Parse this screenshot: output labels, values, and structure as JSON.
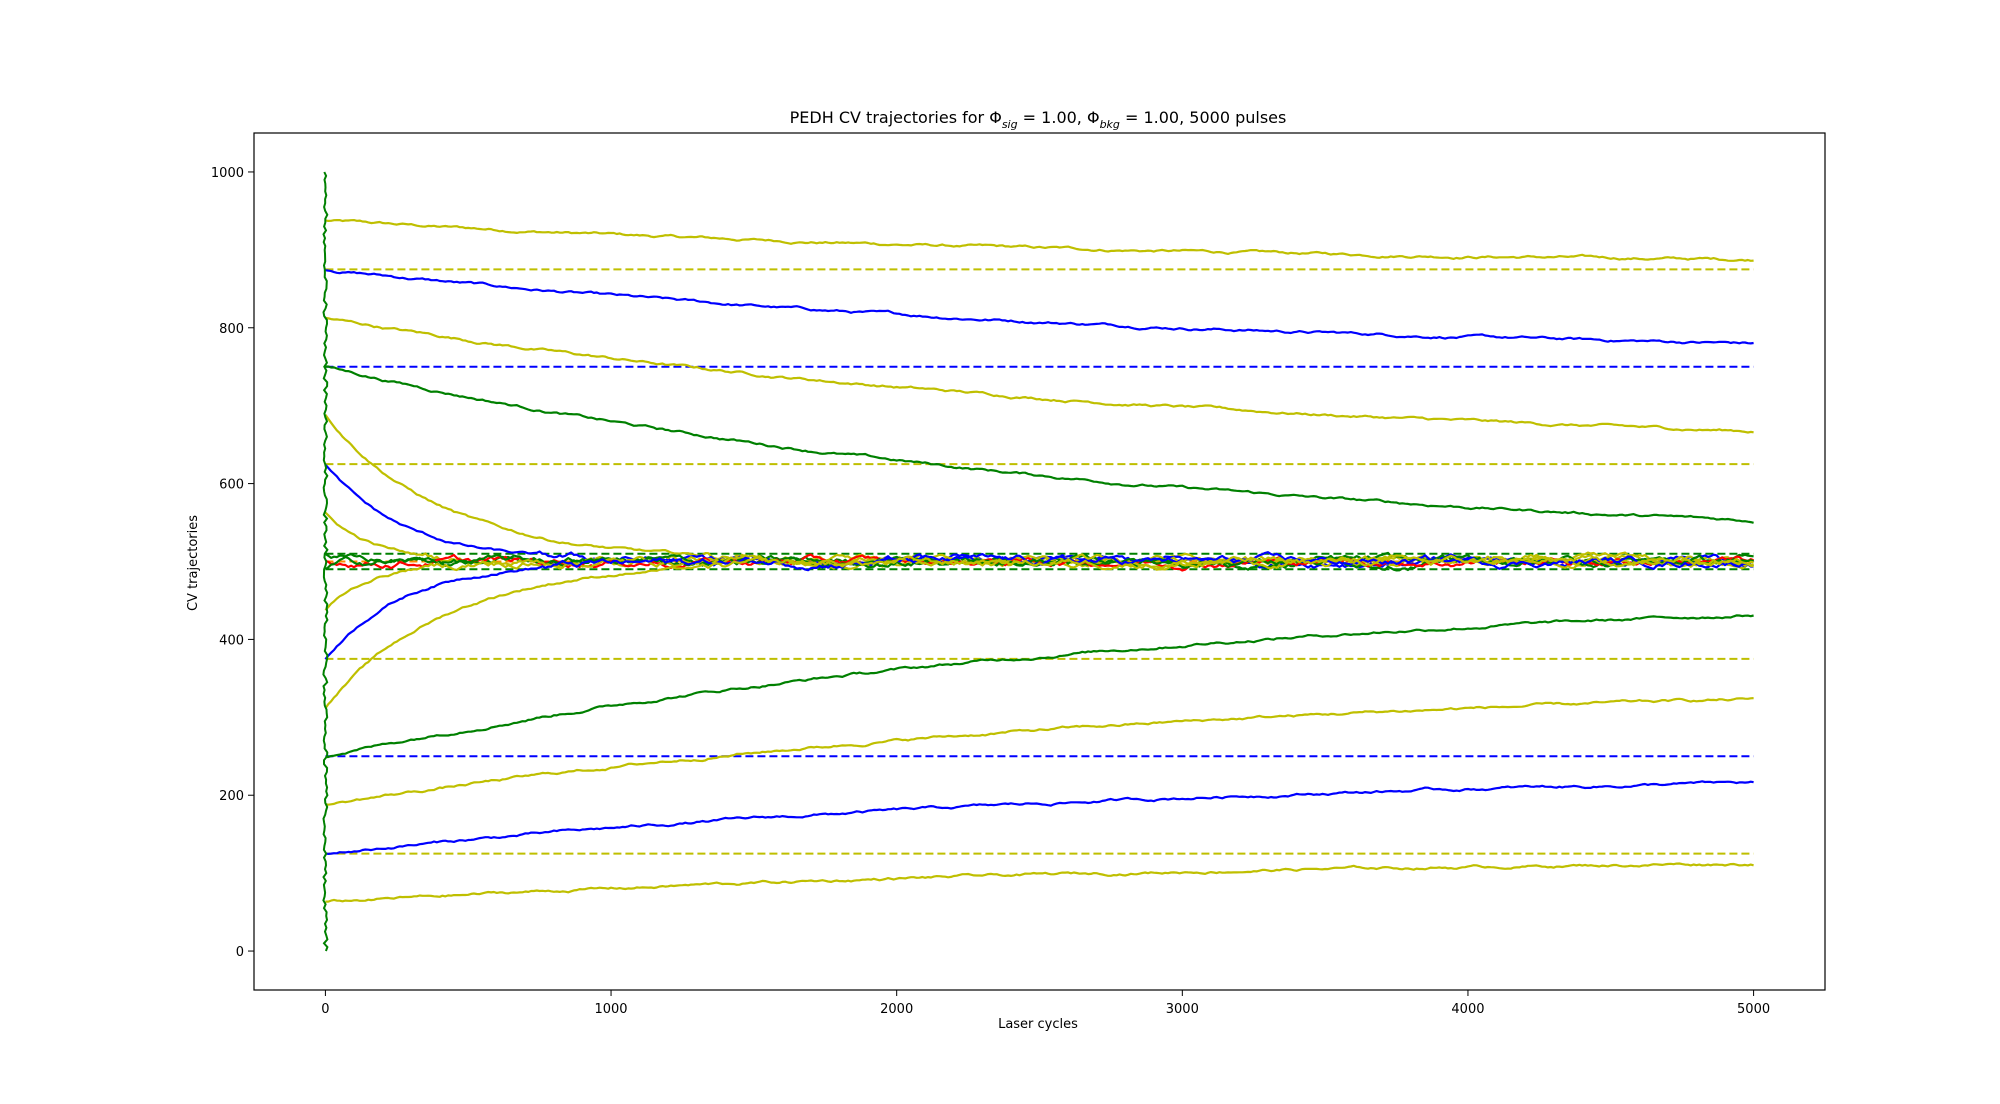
{
  "chart_data": {
    "type": "line",
    "title_prefix": "PEDH CV trajectories for ",
    "title_phi_sig": "Φ",
    "title_sig_sub": "sig",
    "title_mid": " = 1.00, ",
    "title_phi_bkg": "Φ",
    "title_bkg_sub": "bkg",
    "title_suffix": " = 1.00, 5000 pulses",
    "xlabel": "Laser cycles",
    "ylabel": "CV trajectories",
    "xlim": [
      -250,
      5250
    ],
    "ylim": [
      -50,
      1050
    ],
    "xticks": [
      0,
      1000,
      2000,
      3000,
      4000,
      5000
    ],
    "yticks": [
      0,
      200,
      400,
      600,
      800,
      1000
    ],
    "grid": false,
    "legend": "none",
    "x_end": 5000,
    "colors": {
      "yellow": "#bfbf00",
      "blue": "#0000ff",
      "green": "#008000",
      "red": "#ff0000",
      "orange": "#ff8c00"
    },
    "series": [
      {
        "color": "yellow",
        "start": 937.5,
        "end": 877,
        "rate": 0.00035
      },
      {
        "color": "blue",
        "start": 875,
        "end": 760,
        "rate": 0.00035
      },
      {
        "color": "yellow",
        "start": 812.5,
        "end": 637,
        "rate": 0.00035
      },
      {
        "color": "green",
        "start": 750,
        "end": 511,
        "rate": 0.00035
      },
      {
        "color": "yellow",
        "start": 687.5,
        "end": 500,
        "rate": 0.0024
      },
      {
        "color": "blue",
        "start": 625,
        "end": 500,
        "rate": 0.0037
      },
      {
        "color": "yellow",
        "start": 562.5,
        "end": 500,
        "rate": 0.006
      },
      {
        "color": "green",
        "start": 510,
        "end": 500,
        "rate": 0.02
      },
      {
        "color": "red",
        "start": 500,
        "end": 500,
        "rate": 0.02
      },
      {
        "color": "green",
        "start": 490,
        "end": 500,
        "rate": 0.02
      },
      {
        "color": "yellow",
        "start": 437.5,
        "end": 500,
        "rate": 0.006
      },
      {
        "color": "blue",
        "start": 375,
        "end": 500,
        "rate": 0.0037
      },
      {
        "color": "yellow",
        "start": 312.5,
        "end": 500,
        "rate": 0.0024
      },
      {
        "color": "green",
        "start": 250,
        "end": 470,
        "rate": 0.00035
      },
      {
        "color": "yellow",
        "start": 187.5,
        "end": 352,
        "rate": 0.00035
      },
      {
        "color": "blue",
        "start": 125,
        "end": 235,
        "rate": 0.00035
      },
      {
        "color": "yellow",
        "start": 62.5,
        "end": 123,
        "rate": 0.00035
      }
    ],
    "reference_lines": [
      {
        "y": 875,
        "color": "yellow"
      },
      {
        "y": 750,
        "color": "blue"
      },
      {
        "y": 625,
        "color": "yellow"
      },
      {
        "y": 510,
        "color": "green"
      },
      {
        "y": 500,
        "color": "orange"
      },
      {
        "y": 490,
        "color": "green"
      },
      {
        "y": 375,
        "color": "yellow"
      },
      {
        "y": 250,
        "color": "blue"
      },
      {
        "y": 125,
        "color": "yellow"
      }
    ],
    "initial_spread": {
      "x": 0,
      "ymin": 0,
      "ymax": 1000,
      "color": "green"
    }
  }
}
